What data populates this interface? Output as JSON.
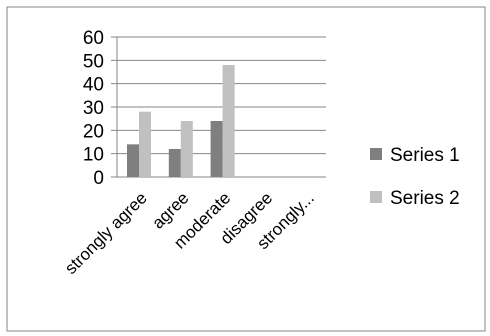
{
  "chart_data": {
    "type": "bar",
    "categories": [
      "strongly agree",
      "agree",
      "moderate",
      "disagree",
      "strongly..."
    ],
    "series": [
      {
        "name": "Series 1",
        "values": [
          14,
          12,
          24,
          0,
          0
        ]
      },
      {
        "name": "Series 2",
        "values": [
          28,
          24,
          48,
          0,
          0
        ]
      }
    ],
    "title": "",
    "xlabel": "",
    "ylabel": "",
    "ylim": [
      0,
      60
    ],
    "yticks": [
      "0",
      "10",
      "20",
      "30",
      "40",
      "50",
      "60"
    ],
    "grid": true,
    "legend_position": "right"
  },
  "colors": {
    "series_1": "#7f7f7f",
    "series_2": "#c0c0c0",
    "gridline": "#868686",
    "frame": "#868686"
  }
}
